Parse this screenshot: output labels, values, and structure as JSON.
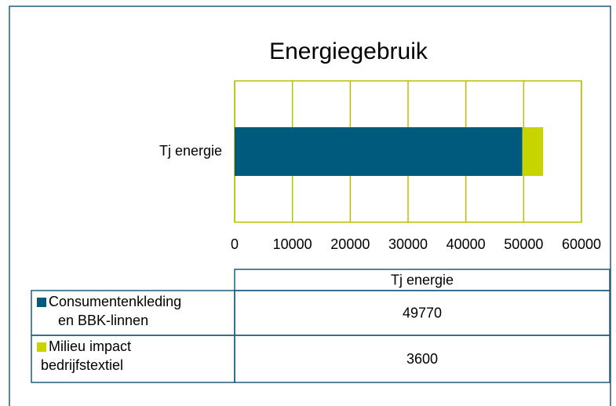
{
  "chart_data": {
    "type": "bar",
    "orientation": "horizontal",
    "stacked": true,
    "title": "Energiegebruik",
    "categories": [
      "Tj energie"
    ],
    "series": [
      {
        "name": "Consumentenkleding en BBK-linnen",
        "color": "#005a7d",
        "values": [
          49770
        ]
      },
      {
        "name": "Milieu impact bedrijfstextiel",
        "color": "#c8d400",
        "values": [
          3600
        ]
      }
    ],
    "xlim": [
      0,
      60000
    ],
    "xticks": [
      0,
      10000,
      20000,
      30000,
      40000,
      50000,
      60000
    ],
    "grid": true,
    "grid_color": "#b8c000",
    "data_table": true
  }
}
